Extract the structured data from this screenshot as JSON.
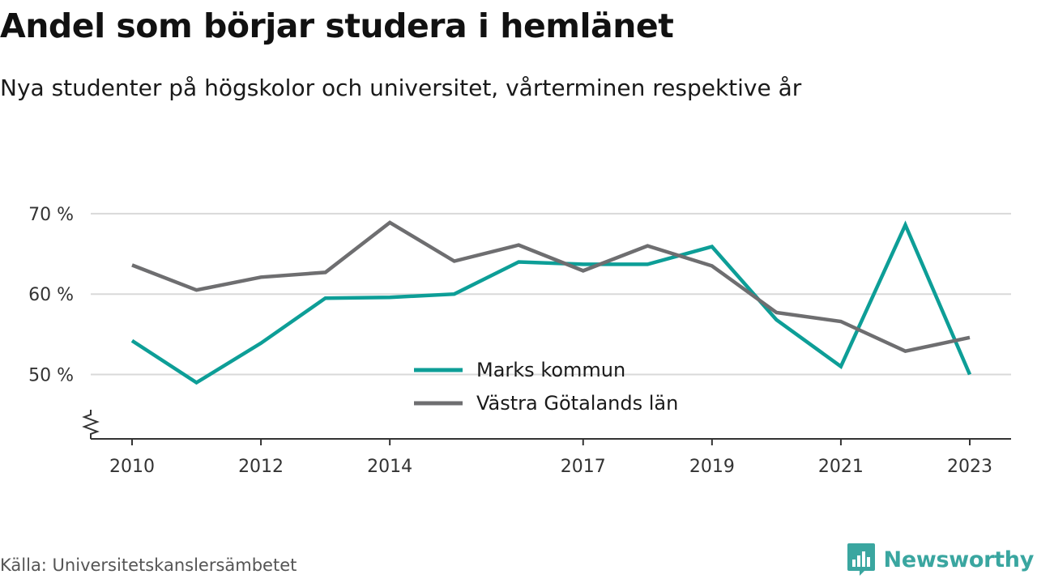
{
  "header": {
    "title": "Andel som börjar studera i hemlänet",
    "subtitle": "Nya studenter på högskolor och universitet, vårterminen respektive år"
  },
  "footer": {
    "source": "Källa: Universitetskanslersämbetet",
    "brand": "Newsworthy"
  },
  "colors": {
    "marks": "#0d9e97",
    "vastra": "#6e6e70",
    "grid": "#d9d9d9",
    "axis": "#333333",
    "brand": "#3aa6a0"
  },
  "chart_data": {
    "type": "line",
    "title": "Andel som börjar studera i hemlänet",
    "subtitle": "Nya studenter på högskolor och universitet, vårterminen respektive år",
    "x": [
      2010,
      2011,
      2012,
      2013,
      2014,
      2015,
      2016,
      2017,
      2018,
      2019,
      2020,
      2021,
      2022,
      2023
    ],
    "x_tick_labels": [
      "2010",
      "2012",
      "2014",
      "2017",
      "2019",
      "2021",
      "2023"
    ],
    "y_ticks": [
      50,
      60,
      70
    ],
    "y_tick_labels": [
      "50 %",
      "60 %",
      "70 %"
    ],
    "ylim": [
      42,
      72
    ],
    "axis_break": true,
    "grid": true,
    "legend_position": "center-bottom",
    "series": [
      {
        "name": "Marks kommun",
        "color": "#0d9e97",
        "values": [
          54.2,
          49.0,
          53.9,
          59.5,
          59.6,
          60.0,
          64.0,
          63.7,
          63.7,
          65.9,
          56.8,
          51.0,
          68.6,
          50.0
        ]
      },
      {
        "name": "Västra Götalands län",
        "color": "#6e6e70",
        "values": [
          63.6,
          60.5,
          62.1,
          62.7,
          68.9,
          64.1,
          66.1,
          62.9,
          66.0,
          63.5,
          57.7,
          56.6,
          52.9,
          54.6
        ]
      }
    ]
  }
}
